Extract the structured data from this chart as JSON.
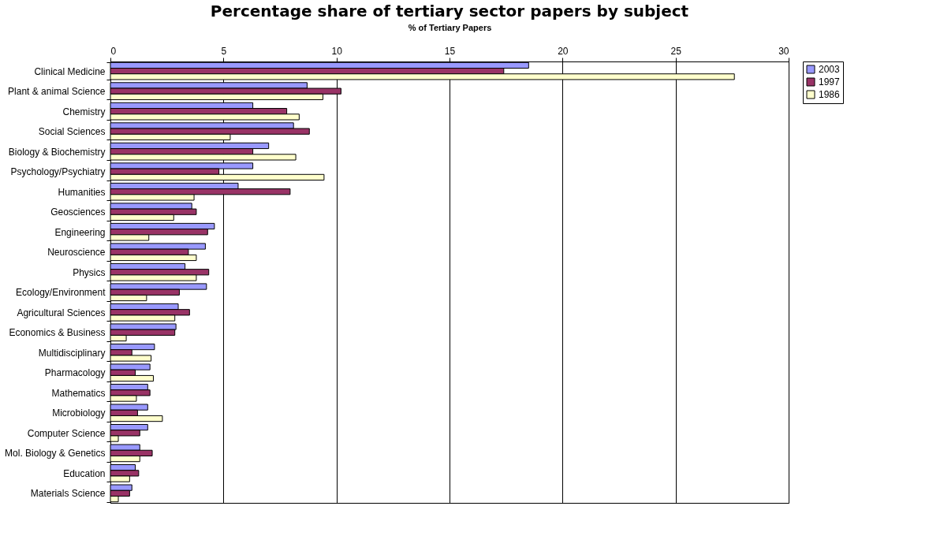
{
  "chart_data": {
    "type": "bar",
    "orientation": "horizontal",
    "title": "Percentage share of tertiary sector papers by subject",
    "xlabel": "% of Tertiary Papers",
    "categories": [
      "Clinical Medicine",
      "Plant & animal Science",
      "Chemistry",
      "Social Sciences",
      "Biology & Biochemistry",
      "Psychology/Psychiatry",
      "Humanities",
      "Geosciences",
      "Engineering",
      "Neuroscience",
      "Physics",
      "Ecology/Environment",
      "Agricultural Sciences",
      "Economics & Business",
      "Multidisciplinary",
      "Pharmacology",
      "Mathematics",
      "Microbiology",
      "Computer Science",
      "Mol. Biology & Genetics",
      "Education",
      "Materials Science"
    ],
    "series": [
      {
        "name": "2003",
        "color": "#9999ff",
        "values": [
          18.5,
          8.7,
          6.3,
          8.1,
          7.0,
          6.3,
          5.65,
          3.6,
          4.6,
          4.2,
          3.3,
          4.25,
          3.0,
          2.9,
          1.95,
          1.75,
          1.65,
          1.65,
          1.65,
          1.3,
          1.1,
          0.95
        ]
      },
      {
        "name": "1997",
        "color": "#993366",
        "values": [
          17.4,
          10.2,
          7.8,
          8.8,
          6.3,
          4.8,
          7.95,
          3.8,
          4.3,
          3.45,
          4.35,
          3.05,
          3.5,
          2.85,
          0.95,
          1.1,
          1.75,
          1.2,
          1.3,
          1.85,
          1.25,
          0.85
        ]
      },
      {
        "name": "1986",
        "color": "#ffffcc",
        "values": [
          27.6,
          9.4,
          8.35,
          5.3,
          8.2,
          9.45,
          3.7,
          2.8,
          1.7,
          3.8,
          3.8,
          1.6,
          2.85,
          0.7,
          1.8,
          1.9,
          1.15,
          2.3,
          0.35,
          1.3,
          0.85,
          0.35
        ]
      }
    ],
    "xlim": [
      0,
      30
    ],
    "xticks": [
      0,
      5,
      10,
      15,
      20,
      25,
      30
    ],
    "grid": "x",
    "legend": "right"
  }
}
